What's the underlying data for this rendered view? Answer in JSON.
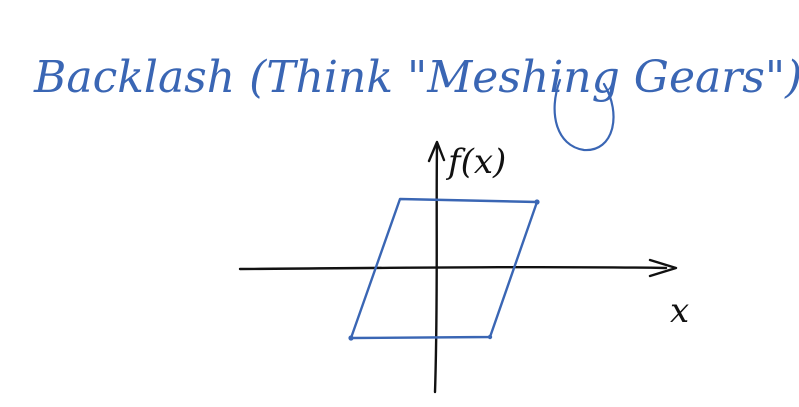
{
  "title": "Backlash (Think \"Meshing Gears\")",
  "axes": {
    "x_label": "x",
    "y_label": "f(x)"
  },
  "colors": {
    "ink_blue": "#3a66b4",
    "axis_black": "#111111",
    "background": "#ffffff"
  }
}
